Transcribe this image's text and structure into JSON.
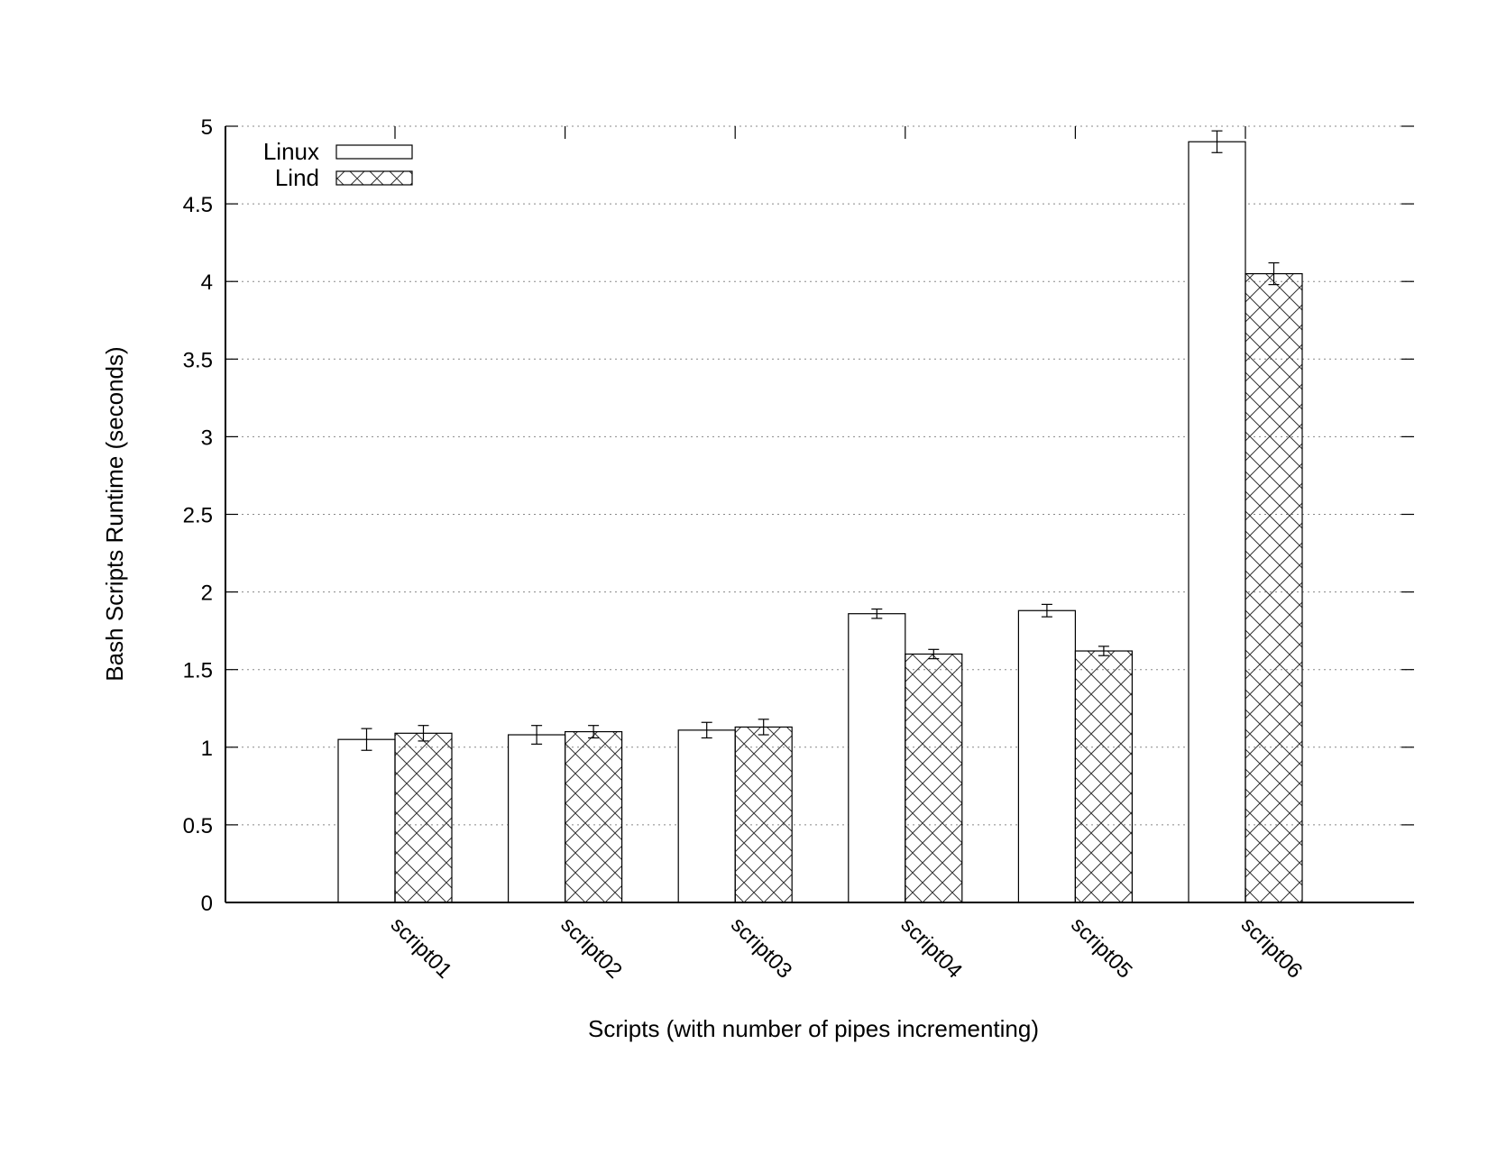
{
  "chart_data": {
    "type": "bar",
    "title": "",
    "xlabel": "Scripts (with number of pipes incrementing)",
    "ylabel": "Bash Scripts Runtime (seconds)",
    "ylim": [
      0,
      5
    ],
    "yticks": [
      "0",
      "0.5",
      "1",
      "1.5",
      "2",
      "2.5",
      "3",
      "3.5",
      "4",
      "4.5",
      "5"
    ],
    "categories": [
      "script01",
      "script02",
      "script03",
      "script04",
      "script05",
      "script06"
    ],
    "grid": true,
    "legend_position": "top-left",
    "series": [
      {
        "name": "Linux",
        "pattern": "none",
        "values": [
          1.05,
          1.08,
          1.11,
          1.86,
          1.88,
          4.9
        ],
        "errors": [
          0.07,
          0.06,
          0.05,
          0.03,
          0.04,
          0.07
        ]
      },
      {
        "name": "Lind",
        "pattern": "crosshatch",
        "values": [
          1.09,
          1.1,
          1.13,
          1.6,
          1.62,
          4.05
        ],
        "errors": [
          0.05,
          0.04,
          0.05,
          0.03,
          0.03,
          0.07
        ]
      }
    ],
    "colors": {
      "bar_fill": "#ffffff",
      "stroke": "#000000",
      "grid": "#888888"
    }
  }
}
